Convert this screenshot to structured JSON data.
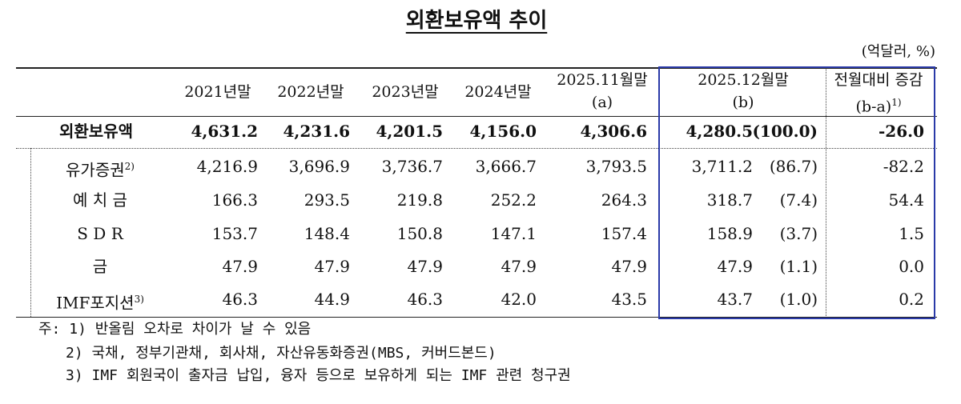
{
  "title": "외환보유액 추이",
  "unit": "(억달러, %)",
  "table": {
    "header": [
      {
        "lines": [
          "2021년말"
        ]
      },
      {
        "lines": [
          "2022년말"
        ]
      },
      {
        "lines": [
          "2023년말"
        ]
      },
      {
        "lines": [
          "2024년말"
        ]
      },
      {
        "lines": [
          "2025.11월말",
          "(a)"
        ]
      },
      {
        "lines": [
          "2025.12월말",
          "(b)"
        ]
      },
      {
        "lines": [
          "전월대비 증감",
          "(b-a)"
        ],
        "note": "1)"
      }
    ],
    "rows": [
      {
        "label": "외환보유액",
        "cells": [
          "4,631.2",
          "4,231.6",
          "4,201.5",
          "4,156.0",
          "4,306.6",
          "4,280.5",
          "(100.0)",
          "-26.0"
        ]
      },
      {
        "label": "유가증권",
        "note": "2)",
        "cells": [
          "4,216.9",
          "3,696.9",
          "3,736.7",
          "3,666.7",
          "3,793.5",
          "3,711.2",
          "(86.7)",
          "-82.2"
        ]
      },
      {
        "label": "예 치 금",
        "cells": [
          "166.3",
          "293.5",
          "219.8",
          "252.2",
          "264.3",
          "318.7",
          "(7.4)",
          "54.4"
        ]
      },
      {
        "label": "S D R",
        "cells": [
          "153.7",
          "148.4",
          "150.8",
          "147.1",
          "157.4",
          "158.9",
          "(3.7)",
          "1.5"
        ]
      },
      {
        "label": "금",
        "cells": [
          "47.9",
          "47.9",
          "47.9",
          "47.9",
          "47.9",
          "47.9",
          "(1.1)",
          "0.0"
        ]
      },
      {
        "label": "IMF포지션",
        "note": "3)",
        "cells": [
          "46.3",
          "44.9",
          "46.3",
          "42.0",
          "43.5",
          "43.7",
          "(1.0)",
          "0.2"
        ]
      }
    ]
  },
  "notes": [
    "주: 1) 반올림 오차로 차이가 날 수 있음",
    "2) 국채, 정부기관채, 회사채, 자산유동화증권(MBS, 커버드본드)",
    "3) IMF 회원국이 출자금 납입, 융자 등으로 보유하게 되는 IMF 관련 청구권"
  ]
}
